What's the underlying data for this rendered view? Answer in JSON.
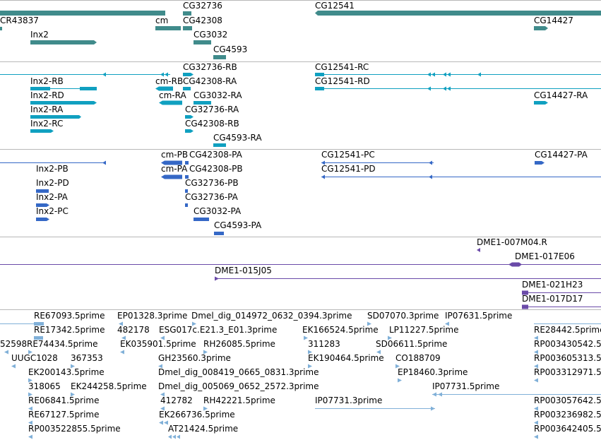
{
  "colors": {
    "gene": "#408b8b",
    "transcript": "#10a0c0",
    "protein": "#3568c6",
    "clone": "#6a4aa8",
    "est": "#80b0d8",
    "separator": "#b8b8b8"
  },
  "tracks": {
    "gene": {
      "labels": [
        "CR43837",
        "Inx2",
        "cm",
        "CG32736",
        "CG42308",
        "CG3032",
        "CG4593",
        "CG12541",
        "CG14427"
      ]
    },
    "transcript": {
      "labels": [
        "Inx2-RB",
        "Inx2-RD",
        "Inx2-RA",
        "Inx2-RC",
        "cm-RB",
        "cm-RA",
        "CG32736-RB",
        "CG42308-RA",
        "CG3032-RA",
        "CG32736-RA",
        "CG42308-RB",
        "CG4593-RA",
        "CG12541-RC",
        "CG12541-RD",
        "CG14427-RA"
      ]
    },
    "protein": {
      "labels": [
        "Inx2-PB",
        "Inx2-PD",
        "Inx2-PA",
        "Inx2-PC",
        "cm-PB",
        "cm-PA",
        "CG42308-PA",
        "CG42308-PB",
        "CG32736-PB",
        "CG32736-PA",
        "CG3032-PA",
        "CG4593-PA",
        "CG12541-PC",
        "CG12541-PD",
        "CG14427-PA"
      ]
    },
    "clone": {
      "labels": [
        "DME1-007M04.R",
        "DME1-017E06",
        "DME1-015J05",
        "DME1-021H23",
        "DME1-017D17"
      ]
    },
    "est": {
      "labels": [
        "RE67093.5prime",
        "EP01328.3prime",
        "Dmel_dig_014972_0632_0394.3prime",
        "SD07070.3prime",
        "IP07631.5prime",
        "RE17342.5prime",
        "482178",
        "ESG017c.E21.3_E01.3prime",
        "EK166524.5prime",
        "LP11227.5prime",
        "RE28442.5prime",
        "52598",
        "RE74434.5prime",
        "EK035901.5prime",
        "RH26085.5prime",
        "311283",
        "SD06611.5prime",
        "RP003430542.5",
        "UUGC1028",
        "367353",
        "GH23560.3prime",
        "EK190464.5prime",
        "CO188709",
        "RP003605313.5",
        "EK200143.5prime",
        "EP18460.3prime",
        "RP003312971.5",
        "318065",
        "EK244258.5prime",
        "Dmel_dig_008419_0665_0831.3prime",
        "IP07731.5prime",
        "RE06841.5prime",
        "412782",
        "RH42221.5prime",
        "IP07731.3prime",
        "RP003057642.5",
        "RE67127.5prime",
        "EK266736.5prime",
        "RP003236982.5",
        "RP003522855.5prime",
        "AT21424.5prime",
        "RP003642405.5",
        "Dmel_dig_005069_0652_2572.3prime"
      ]
    }
  }
}
